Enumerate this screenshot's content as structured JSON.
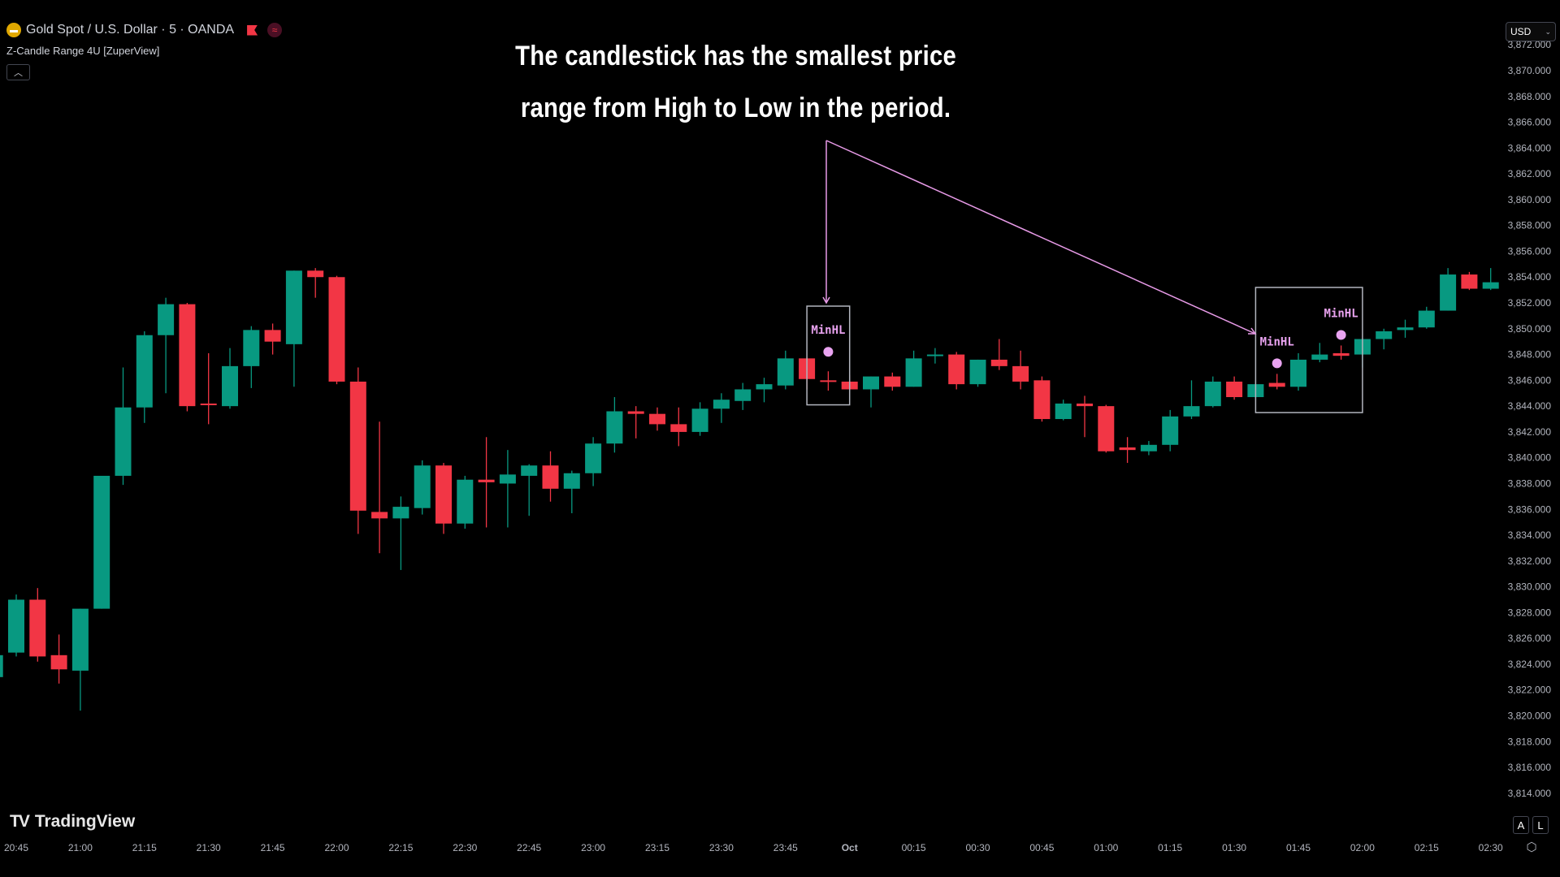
{
  "header": {
    "symbol_title": "Gold Spot / U.S. Dollar · 5 · OANDA",
    "indicator_name": "Z-Candle Range 4U [ZuperView]",
    "collapse_icon": "chevron-up-icon"
  },
  "annotation": {
    "line1": "The candlestick has the smallest price",
    "line2": "range from High to Low in the period."
  },
  "currency_select": {
    "value": "USD"
  },
  "branding": {
    "logo_text": "TradingView",
    "logo_mark": "17"
  },
  "bottom_buttons": {
    "auto": "A",
    "log": "L"
  },
  "colors": {
    "up": "#089981",
    "down": "#f23645",
    "marker": "#e9a3f0",
    "arrow": "#e89be8",
    "box": "#b2b5be"
  },
  "chart_data": {
    "type": "candlestick",
    "symbol": "XAUUSD",
    "interval": "5",
    "ylim": [
      3813,
      3873
    ],
    "price_ticks": [
      "3,872.000",
      "3,870.000",
      "3,868.000",
      "3,866.000",
      "3,864.000",
      "3,862.000",
      "3,860.000",
      "3,858.000",
      "3,856.000",
      "3,854.000",
      "3,852.000",
      "3,850.000",
      "3,848.000",
      "3,846.000",
      "3,844.000",
      "3,842.000",
      "3,840.000",
      "3,838.000",
      "3,836.000",
      "3,834.000",
      "3,832.000",
      "3,830.000",
      "3,828.000",
      "3,826.000",
      "3,824.000",
      "3,822.000",
      "3,820.000",
      "3,818.000",
      "3,816.000",
      "3,814.000"
    ],
    "time_ticks": [
      "20:45",
      "21:00",
      "21:15",
      "21:30",
      "21:45",
      "22:00",
      "22:15",
      "22:30",
      "22:45",
      "23:00",
      "23:15",
      "23:30",
      "23:45",
      "Oct",
      "00:15",
      "00:30",
      "00:45",
      "01:00",
      "01:15",
      "01:30",
      "01:45",
      "02:00",
      "02:15",
      "02:30"
    ],
    "candles": [
      [
        "20:40",
        3823.0,
        3824.9,
        3822.5,
        3824.7
      ],
      [
        "20:45",
        3824.9,
        3829.4,
        3824.6,
        3829.0
      ],
      [
        "20:50",
        3829.0,
        3829.9,
        3824.2,
        3824.6
      ],
      [
        "20:55",
        3824.7,
        3826.3,
        3822.5,
        3823.6
      ],
      [
        "21:00",
        3823.5,
        3828.3,
        3820.4,
        3828.3
      ],
      [
        "21:05",
        3828.3,
        3838.6,
        3828.3,
        3838.6
      ],
      [
        "21:10",
        3838.6,
        3847.0,
        3837.9,
        3843.9
      ],
      [
        "21:15",
        3843.9,
        3849.8,
        3842.7,
        3849.5
      ],
      [
        "21:20",
        3849.5,
        3852.4,
        3845.0,
        3851.9
      ],
      [
        "21:25",
        3851.9,
        3852.0,
        3843.6,
        3844.0
      ],
      [
        "21:30",
        3844.2,
        3848.1,
        3842.6,
        3844.1
      ],
      [
        "21:35",
        3844.0,
        3848.5,
        3843.8,
        3847.1
      ],
      [
        "21:40",
        3847.1,
        3850.2,
        3845.4,
        3849.9
      ],
      [
        "21:45",
        3849.9,
        3850.4,
        3848.0,
        3849.0
      ],
      [
        "21:50",
        3848.8,
        3854.5,
        3845.5,
        3854.5
      ],
      [
        "21:55",
        3854.5,
        3854.7,
        3852.4,
        3854.0
      ],
      [
        "22:00",
        3854.0,
        3854.1,
        3845.7,
        3845.9
      ],
      [
        "22:05",
        3845.9,
        3847.0,
        3834.1,
        3835.9
      ],
      [
        "22:10",
        3835.8,
        3842.8,
        3832.6,
        3835.3
      ],
      [
        "22:15",
        3835.3,
        3837.0,
        3831.3,
        3836.2
      ],
      [
        "22:20",
        3836.1,
        3839.8,
        3835.6,
        3839.4
      ],
      [
        "22:25",
        3839.4,
        3839.6,
        3834.1,
        3834.9
      ],
      [
        "22:30",
        3834.9,
        3838.6,
        3834.5,
        3838.3
      ],
      [
        "22:35",
        3838.3,
        3841.6,
        3834.6,
        3838.1
      ],
      [
        "22:40",
        3838.0,
        3840.6,
        3834.6,
        3838.7
      ],
      [
        "22:45",
        3838.6,
        3839.5,
        3835.5,
        3839.4
      ],
      [
        "22:50",
        3839.4,
        3840.5,
        3836.6,
        3837.6
      ],
      [
        "22:55",
        3837.6,
        3839.0,
        3835.7,
        3838.8
      ],
      [
        "23:00",
        3838.8,
        3841.6,
        3837.8,
        3841.1
      ],
      [
        "23:05",
        3841.1,
        3844.7,
        3840.4,
        3843.6
      ],
      [
        "23:10",
        3843.6,
        3844.0,
        3841.5,
        3843.4
      ],
      [
        "23:15",
        3843.4,
        3843.9,
        3842.1,
        3842.6
      ],
      [
        "23:20",
        3842.6,
        3843.9,
        3840.9,
        3842.0
      ],
      [
        "23:25",
        3842.0,
        3844.3,
        3841.7,
        3843.8
      ],
      [
        "23:30",
        3843.8,
        3845.0,
        3842.7,
        3844.5
      ],
      [
        "23:35",
        3844.4,
        3845.8,
        3843.7,
        3845.3
      ],
      [
        "23:40",
        3845.3,
        3846.2,
        3844.3,
        3845.7
      ],
      [
        "23:45",
        3845.6,
        3848.3,
        3845.3,
        3847.7
      ],
      [
        "23:50",
        3847.7,
        3847.8,
        3845.3,
        3846.1
      ],
      [
        "23:55",
        3846.0,
        3846.7,
        3845.2,
        3845.9
      ],
      [
        "00:00",
        3845.9,
        3846.4,
        3845.2,
        3845.3
      ],
      [
        "00:05",
        3845.3,
        3846.3,
        3843.9,
        3846.3
      ],
      [
        "00:10",
        3846.3,
        3846.6,
        3845.2,
        3845.5
      ],
      [
        "00:15",
        3845.5,
        3848.3,
        3845.5,
        3847.7
      ],
      [
        "00:20",
        3847.9,
        3848.5,
        3847.3,
        3848.0
      ],
      [
        "00:25",
        3848.0,
        3848.2,
        3845.3,
        3845.7
      ],
      [
        "00:30",
        3845.7,
        3847.6,
        3845.5,
        3847.6
      ],
      [
        "00:35",
        3847.6,
        3849.2,
        3846.8,
        3847.1
      ],
      [
        "00:40",
        3847.1,
        3848.3,
        3845.3,
        3845.9
      ],
      [
        "00:45",
        3846.0,
        3846.3,
        3842.8,
        3843.0
      ],
      [
        "00:50",
        3843.0,
        3844.5,
        3842.9,
        3844.2
      ],
      [
        "00:55",
        3844.2,
        3844.8,
        3841.6,
        3844.0
      ],
      [
        "01:00",
        3844.0,
        3844.1,
        3840.4,
        3840.5
      ],
      [
        "01:05",
        3840.8,
        3841.6,
        3839.6,
        3840.6
      ],
      [
        "01:10",
        3840.5,
        3841.3,
        3840.2,
        3841.0
      ],
      [
        "01:15",
        3841.0,
        3843.7,
        3840.5,
        3843.2
      ],
      [
        "01:20",
        3843.2,
        3846.0,
        3843.0,
        3844.0
      ],
      [
        "01:25",
        3844.0,
        3846.3,
        3843.9,
        3845.9
      ],
      [
        "01:30",
        3845.9,
        3846.3,
        3844.5,
        3844.7
      ],
      [
        "01:35",
        3844.7,
        3846.0,
        3844.6,
        3845.7
      ],
      [
        "01:40",
        3845.8,
        3846.5,
        3845.3,
        3845.5
      ],
      [
        "01:45",
        3845.5,
        3848.1,
        3845.2,
        3847.6
      ],
      [
        "01:50",
        3847.6,
        3848.9,
        3847.4,
        3848.0
      ],
      [
        "01:55",
        3848.1,
        3848.7,
        3847.6,
        3847.9
      ],
      [
        "02:00",
        3848.0,
        3849.2,
        3847.0,
        3849.2
      ],
      [
        "02:05",
        3849.2,
        3850.0,
        3848.4,
        3849.8
      ],
      [
        "02:10",
        3849.9,
        3850.7,
        3849.3,
        3850.1
      ],
      [
        "02:15",
        3850.1,
        3851.7,
        3850.0,
        3851.4
      ],
      [
        "02:20",
        3851.4,
        3854.7,
        3851.4,
        3854.2
      ],
      [
        "02:25",
        3854.2,
        3854.4,
        3853.0,
        3853.1
      ],
      [
        "02:30",
        3853.1,
        3854.7,
        3853.0,
        3853.6
      ]
    ],
    "markers": [
      {
        "time": "23:55",
        "label": "MinHL"
      },
      {
        "time": "01:40",
        "label": "MinHL"
      },
      {
        "time": "01:55",
        "label": "MinHL"
      }
    ],
    "range_boxes": [
      {
        "from": "23:50",
        "to": "00:00",
        "top": 3851.75,
        "bottom": 3844.1
      },
      {
        "from": "01:35",
        "to": "02:00",
        "top": 3853.2,
        "bottom": 3843.5
      }
    ]
  }
}
